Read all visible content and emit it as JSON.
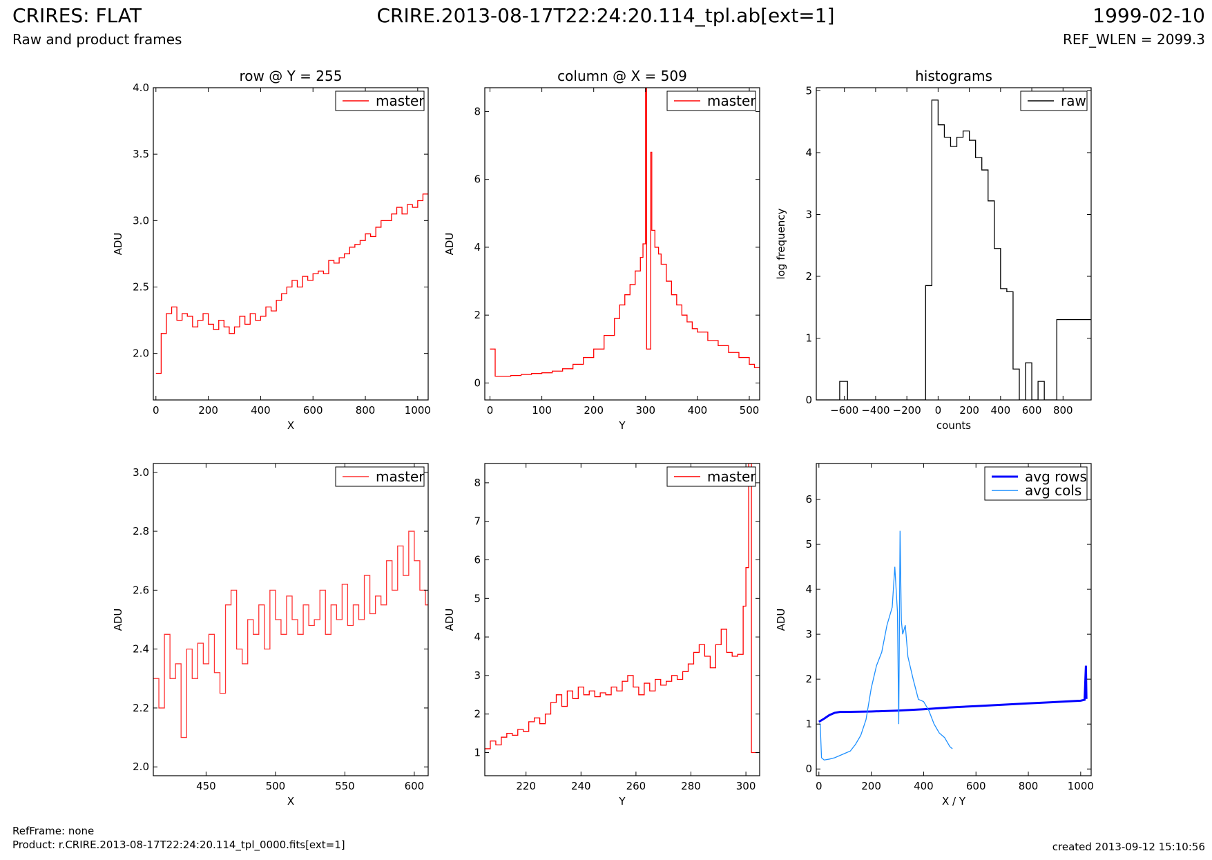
{
  "header": {
    "title_left": "CRIRES: FLAT",
    "subtitle_left": "Raw and product frames",
    "title_center": "CRIRE.2013-08-17T22:24:20.114_tpl.ab[ext=1]",
    "title_right": "1999-02-10",
    "subtitle_right": "REF_WLEN = 2099.3"
  },
  "footer": {
    "refframe": "RefFrame: none",
    "product": "Product: r.CRIRE.2013-08-17T22:24:20.114_tpl_0000.fits[ext=1]",
    "created": "created 2013-09-12 15:10:56"
  },
  "colors": {
    "master": "#ff0000",
    "raw": "#000000",
    "avg_rows": "#0000ff",
    "avg_cols": "#1e90ff"
  },
  "chart_data": [
    {
      "type": "line",
      "title": "row @ Y = 255",
      "xlabel": "X",
      "ylabel": "ADU",
      "xlim": [
        -10,
        1040
      ],
      "ylim": [
        1.65,
        4.0
      ],
      "xticks": [
        0,
        200,
        400,
        600,
        800,
        1000
      ],
      "xtick_labels": [
        "0",
        "200",
        "400",
        "600",
        "800",
        "1000"
      ],
      "yticks": [
        2.0,
        2.5,
        3.0,
        3.5,
        4.0
      ],
      "ytick_labels": [
        "2.0",
        "2.5",
        "3.0",
        "3.5",
        "4.0"
      ],
      "legend": "top-right",
      "series": [
        {
          "name": "master",
          "color": "#ff0000",
          "step": true,
          "x": [
            0,
            20,
            40,
            60,
            80,
            100,
            120,
            140,
            160,
            180,
            200,
            220,
            240,
            260,
            280,
            300,
            320,
            340,
            360,
            380,
            400,
            420,
            440,
            460,
            480,
            500,
            520,
            540,
            560,
            580,
            600,
            620,
            640,
            660,
            680,
            700,
            720,
            740,
            760,
            780,
            800,
            820,
            840,
            860,
            880,
            900,
            920,
            940,
            960,
            980,
            1000,
            1020
          ],
          "y": [
            1.85,
            2.15,
            2.3,
            2.35,
            2.25,
            2.3,
            2.28,
            2.2,
            2.25,
            2.3,
            2.22,
            2.18,
            2.25,
            2.2,
            2.15,
            2.2,
            2.28,
            2.22,
            2.3,
            2.25,
            2.28,
            2.35,
            2.32,
            2.4,
            2.45,
            2.5,
            2.55,
            2.5,
            2.58,
            2.55,
            2.6,
            2.62,
            2.6,
            2.7,
            2.68,
            2.72,
            2.75,
            2.8,
            2.82,
            2.85,
            2.9,
            2.88,
            2.95,
            3.0,
            3.0,
            3.05,
            3.1,
            3.05,
            3.12,
            3.1,
            3.15,
            3.2
          ]
        }
      ]
    },
    {
      "type": "line",
      "title": "column @ X = 509",
      "xlabel": "Y",
      "ylabel": "ADU",
      "xlim": [
        -10,
        520
      ],
      "ylim": [
        -0.5,
        8.7
      ],
      "xticks": [
        0,
        100,
        200,
        300,
        400,
        500
      ],
      "xtick_labels": [
        "0",
        "100",
        "200",
        "300",
        "400",
        "500"
      ],
      "yticks": [
        0,
        2,
        4,
        6,
        8
      ],
      "ytick_labels": [
        "0",
        "2",
        "4",
        "6",
        "8"
      ],
      "legend": "top-right",
      "series": [
        {
          "name": "master",
          "color": "#ff0000",
          "step": true,
          "x": [
            0,
            5,
            10,
            20,
            40,
            60,
            80,
            100,
            120,
            140,
            160,
            180,
            200,
            220,
            240,
            250,
            260,
            270,
            280,
            290,
            295,
            300,
            302,
            305,
            310,
            312,
            318,
            325,
            330,
            340,
            350,
            360,
            370,
            380,
            390,
            400,
            420,
            440,
            460,
            480,
            500,
            510
          ],
          "y": [
            1.0,
            1.0,
            0.2,
            0.2,
            0.22,
            0.25,
            0.28,
            0.3,
            0.35,
            0.42,
            0.55,
            0.75,
            1.0,
            1.4,
            1.9,
            2.3,
            2.6,
            2.9,
            3.3,
            3.7,
            4.1,
            8.7,
            1.0,
            1.0,
            6.8,
            4.5,
            4.0,
            3.8,
            3.5,
            3.0,
            2.6,
            2.3,
            2.0,
            1.8,
            1.6,
            1.5,
            1.25,
            1.1,
            0.9,
            0.75,
            0.55,
            0.45
          ]
        }
      ]
    },
    {
      "type": "line",
      "title": "histograms",
      "xlabel": "counts",
      "ylabel": "log frequency",
      "xlim": [
        -780,
        980
      ],
      "ylim": [
        0,
        5.05
      ],
      "xticks": [
        -600,
        -400,
        -200,
        0,
        200,
        400,
        600,
        800
      ],
      "xtick_labels": [
        "−600",
        "−400",
        "−200",
        "0",
        "200",
        "400",
        "600",
        "800"
      ],
      "yticks": [
        0,
        1,
        2,
        3,
        4,
        5
      ],
      "ytick_labels": [
        "0",
        "1",
        "2",
        "3",
        "4",
        "5"
      ],
      "legend": "top-right",
      "series": [
        {
          "name": "raw",
          "color": "#000000",
          "step": true,
          "x": [
            -780,
            -630,
            -580,
            -530,
            -80,
            -40,
            0,
            40,
            80,
            120,
            160,
            200,
            240,
            280,
            320,
            360,
            400,
            440,
            480,
            520,
            560,
            600,
            640,
            680,
            720,
            760,
            800,
            840,
            880,
            920,
            960,
            980
          ],
          "y": [
            0,
            0.3,
            0,
            0,
            1.85,
            4.85,
            4.45,
            4.25,
            4.1,
            4.25,
            4.35,
            4.2,
            3.92,
            3.72,
            3.22,
            2.45,
            1.8,
            1.75,
            0.5,
            0,
            0.6,
            0,
            0.3,
            0,
            0,
            1.3,
            1.3,
            1.3,
            1.3,
            1.3,
            1.3,
            1.3
          ]
        }
      ]
    },
    {
      "type": "line",
      "title": "",
      "xlabel": "X",
      "ylabel": "ADU",
      "xlim": [
        412,
        610
      ],
      "ylim": [
        1.97,
        3.03
      ],
      "xticks": [
        450,
        500,
        550,
        600
      ],
      "xtick_labels": [
        "450",
        "500",
        "550",
        "600"
      ],
      "yticks": [
        2.0,
        2.2,
        2.4,
        2.6,
        2.8,
        3.0
      ],
      "ytick_labels": [
        "2.0",
        "2.2",
        "2.4",
        "2.6",
        "2.8",
        "3.0"
      ],
      "legend": "top-right",
      "series": [
        {
          "name": "master",
          "color": "#ff3333",
          "step": true,
          "x": [
            412,
            416,
            420,
            424,
            428,
            432,
            436,
            440,
            444,
            448,
            452,
            456,
            460,
            464,
            468,
            472,
            476,
            480,
            484,
            488,
            492,
            496,
            500,
            504,
            508,
            512,
            516,
            520,
            524,
            528,
            532,
            536,
            540,
            544,
            548,
            552,
            556,
            560,
            564,
            568,
            572,
            576,
            580,
            584,
            588,
            592,
            596,
            600,
            604,
            608
          ],
          "y": [
            2.3,
            2.2,
            2.45,
            2.3,
            2.35,
            2.1,
            2.4,
            2.3,
            2.42,
            2.35,
            2.45,
            2.32,
            2.25,
            2.55,
            2.6,
            2.4,
            2.35,
            2.5,
            2.45,
            2.55,
            2.4,
            2.6,
            2.5,
            2.45,
            2.58,
            2.5,
            2.45,
            2.55,
            2.48,
            2.5,
            2.6,
            2.45,
            2.55,
            2.5,
            2.62,
            2.48,
            2.55,
            2.5,
            2.65,
            2.52,
            2.58,
            2.55,
            2.7,
            2.6,
            2.75,
            2.65,
            2.8,
            2.7,
            2.6,
            2.55
          ]
        }
      ]
    },
    {
      "type": "line",
      "title": "",
      "xlabel": "Y",
      "ylabel": "ADU",
      "xlim": [
        205,
        305
      ],
      "ylim": [
        0.4,
        8.5
      ],
      "xticks": [
        220,
        240,
        260,
        280,
        300
      ],
      "xtick_labels": [
        "220",
        "240",
        "260",
        "280",
        "300"
      ],
      "yticks": [
        1,
        2,
        3,
        4,
        5,
        6,
        7,
        8
      ],
      "ytick_labels": [
        "1",
        "2",
        "3",
        "4",
        "5",
        "6",
        "7",
        "8"
      ],
      "legend": "top-right",
      "series": [
        {
          "name": "master",
          "color": "#ff0000",
          "step": true,
          "x": [
            205,
            207,
            209,
            211,
            213,
            215,
            217,
            219,
            221,
            223,
            225,
            227,
            229,
            231,
            233,
            235,
            237,
            239,
            241,
            243,
            245,
            247,
            249,
            251,
            253,
            255,
            257,
            259,
            261,
            263,
            265,
            267,
            269,
            271,
            273,
            275,
            277,
            279,
            281,
            283,
            285,
            287,
            289,
            291,
            293,
            295,
            297,
            299,
            300,
            301,
            302,
            303
          ],
          "y": [
            1.1,
            1.3,
            1.2,
            1.4,
            1.5,
            1.45,
            1.6,
            1.55,
            1.8,
            1.9,
            1.75,
            2.0,
            2.3,
            2.5,
            2.2,
            2.6,
            2.4,
            2.7,
            2.5,
            2.6,
            2.45,
            2.55,
            2.5,
            2.7,
            2.6,
            2.85,
            3.0,
            2.7,
            2.5,
            2.8,
            2.6,
            2.9,
            2.75,
            2.85,
            3.0,
            2.9,
            3.1,
            3.3,
            3.6,
            3.8,
            3.5,
            3.2,
            3.8,
            4.2,
            3.6,
            3.5,
            3.55,
            4.8,
            5.8,
            8.5,
            1.0,
            1.0
          ]
        }
      ]
    },
    {
      "type": "line",
      "title": "",
      "xlabel": "X / Y",
      "ylabel": "ADU",
      "xlim": [
        -10,
        1040
      ],
      "ylim": [
        -0.15,
        6.8
      ],
      "xticks": [
        0,
        200,
        400,
        600,
        800,
        1000
      ],
      "xtick_labels": [
        "0",
        "200",
        "400",
        "600",
        "800",
        "1000"
      ],
      "yticks": [
        0,
        1,
        2,
        3,
        4,
        5,
        6
      ],
      "ytick_labels": [
        "0",
        "1",
        "2",
        "3",
        "4",
        "5",
        "6"
      ],
      "legend": "top-right",
      "series": [
        {
          "name": "avg rows",
          "color": "#0000ff",
          "x": [
            0,
            20,
            40,
            60,
            80,
            100,
            200,
            300,
            400,
            500,
            600,
            700,
            800,
            900,
            1000,
            1015,
            1020,
            1022
          ],
          "y": [
            1.05,
            1.12,
            1.2,
            1.25,
            1.27,
            1.27,
            1.28,
            1.3,
            1.33,
            1.37,
            1.4,
            1.43,
            1.46,
            1.49,
            1.52,
            1.54,
            2.3,
            1.56
          ]
        },
        {
          "name": "avg cols",
          "color": "#1e90ff",
          "x": [
            0,
            5,
            10,
            20,
            40,
            60,
            80,
            100,
            120,
            140,
            160,
            180,
            200,
            220,
            240,
            260,
            280,
            290,
            300,
            305,
            310,
            315,
            320,
            330,
            340,
            360,
            380,
            400,
            420,
            440,
            460,
            480,
            500,
            510
          ],
          "y": [
            1.0,
            1.0,
            0.25,
            0.2,
            0.22,
            0.25,
            0.3,
            0.35,
            0.4,
            0.55,
            0.75,
            1.1,
            1.8,
            2.3,
            2.6,
            3.2,
            3.6,
            4.5,
            3.5,
            1.0,
            5.3,
            3.3,
            3.0,
            3.2,
            2.5,
            2.0,
            1.55,
            1.5,
            1.3,
            1.0,
            0.8,
            0.7,
            0.5,
            0.45
          ]
        }
      ]
    }
  ]
}
